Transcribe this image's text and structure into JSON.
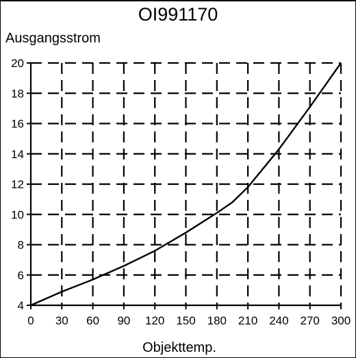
{
  "chart_data": {
    "type": "line",
    "title": "OI991170",
    "ylabel": "Ausgangsstrom",
    "xlabel": "Objekttemp.",
    "xlim": [
      0,
      300
    ],
    "ylim": [
      4,
      20
    ],
    "xticks": [
      0,
      30,
      60,
      90,
      120,
      150,
      180,
      210,
      240,
      270,
      300
    ],
    "yticks": [
      4,
      6,
      8,
      10,
      12,
      14,
      16,
      18,
      20
    ],
    "grid": true,
    "grid_style": "dashed",
    "series": [
      {
        "x": [
          0,
          30,
          60,
          90,
          120,
          150,
          180,
          195,
          210,
          240,
          270,
          300
        ],
        "y": [
          4.0,
          4.9,
          5.7,
          6.6,
          7.6,
          8.8,
          10.1,
          10.8,
          11.8,
          14.3,
          17.1,
          20.0
        ]
      }
    ]
  }
}
